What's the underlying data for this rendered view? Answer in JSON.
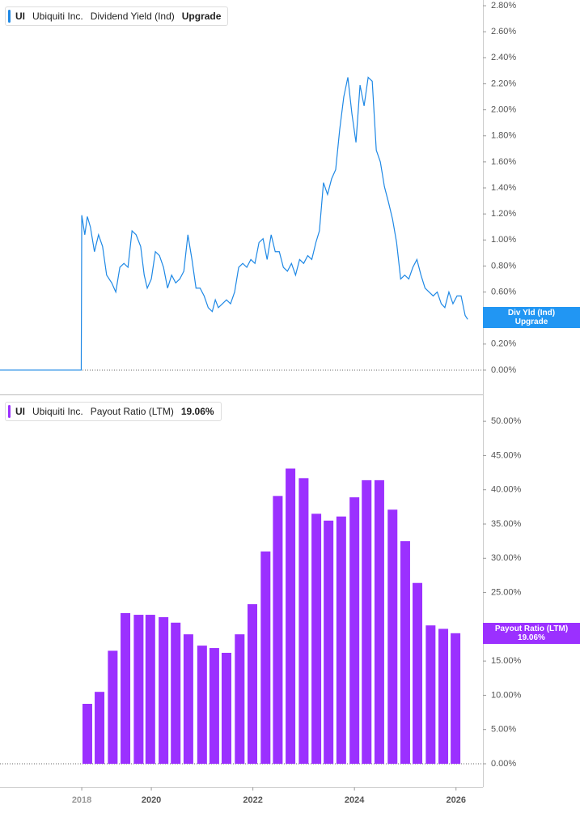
{
  "chart_data": [
    {
      "type": "line",
      "header": {
        "ticker": "UI",
        "company": "Ubiquiti Inc.",
        "metric": "Dividend Yield (Ind)",
        "value": "Upgrade"
      },
      "badge": {
        "label": "Div Yld (Ind)",
        "value": "Upgrade"
      },
      "color": "#1e88e5",
      "xlim": [
        2017.02,
        2026.53
      ],
      "ylim": [
        -0.187,
        2.844
      ],
      "yticks": [
        {
          "value": 0,
          "label": "0.00%"
        },
        {
          "value": 0.2,
          "label": "0.20%"
        },
        {
          "value": 0.4,
          "label": "0.40%"
        },
        {
          "value": 0.6,
          "label": "0.60%"
        },
        {
          "value": 0.8,
          "label": "0.80%"
        },
        {
          "value": 1.0,
          "label": "1.00%"
        },
        {
          "value": 1.2,
          "label": "1.20%"
        },
        {
          "value": 1.4,
          "label": "1.40%"
        },
        {
          "value": 1.6,
          "label": "1.60%"
        },
        {
          "value": 1.8,
          "label": "1.80%"
        },
        {
          "value": 2.0,
          "label": "2.00%"
        },
        {
          "value": 2.2,
          "label": "2.20%"
        },
        {
          "value": 2.4,
          "label": "2.40%"
        },
        {
          "value": 2.6,
          "label": "2.60%"
        },
        {
          "value": 2.8,
          "label": "2.80%"
        }
      ],
      "x": [
        2017.02,
        2018.62,
        2018.63,
        2018.69,
        2018.74,
        2018.8,
        2018.88,
        2018.96,
        2019.04,
        2019.12,
        2019.22,
        2019.3,
        2019.38,
        2019.46,
        2019.54,
        2019.62,
        2019.7,
        2019.79,
        2019.86,
        2019.92,
        2020.0,
        2020.08,
        2020.16,
        2020.24,
        2020.32,
        2020.4,
        2020.48,
        2020.56,
        2020.64,
        2020.72,
        2020.8,
        2020.88,
        2020.96,
        2021.04,
        2021.12,
        2021.2,
        2021.26,
        2021.32,
        2021.4,
        2021.48,
        2021.56,
        2021.64,
        2021.72,
        2021.8,
        2021.88,
        2021.96,
        2022.04,
        2022.12,
        2022.2,
        2022.28,
        2022.36,
        2022.44,
        2022.52,
        2022.6,
        2022.68,
        2022.76,
        2022.84,
        2022.92,
        2023.0,
        2023.08,
        2023.16,
        2023.24,
        2023.31,
        2023.39,
        2023.47,
        2023.55,
        2023.63,
        2023.71,
        2023.79,
        2023.87,
        2023.95,
        2024.03,
        2024.11,
        2024.19,
        2024.27,
        2024.35,
        2024.43,
        2024.51,
        2024.59,
        2024.67,
        2024.75,
        2024.83,
        2024.91,
        2024.99,
        2025.07,
        2025.15,
        2025.23,
        2025.31,
        2025.39,
        2025.47,
        2025.55,
        2025.63,
        2025.71,
        2025.78,
        2025.86,
        2025.94,
        2026.02,
        2026.1,
        2026.18,
        2026.23
      ],
      "values": [
        0,
        0,
        1.19,
        1.04,
        1.18,
        1.1,
        0.91,
        1.04,
        0.95,
        0.73,
        0.67,
        0.6,
        0.79,
        0.82,
        0.79,
        1.07,
        1.04,
        0.95,
        0.73,
        0.63,
        0.7,
        0.91,
        0.88,
        0.79,
        0.63,
        0.73,
        0.67,
        0.7,
        0.76,
        1.04,
        0.85,
        0.63,
        0.63,
        0.57,
        0.48,
        0.45,
        0.54,
        0.48,
        0.51,
        0.54,
        0.51,
        0.6,
        0.79,
        0.82,
        0.79,
        0.85,
        0.82,
        0.98,
        1.01,
        0.85,
        1.04,
        0.91,
        0.91,
        0.79,
        0.76,
        0.82,
        0.73,
        0.85,
        0.82,
        0.88,
        0.85,
        0.98,
        1.07,
        1.44,
        1.35,
        1.47,
        1.54,
        1.85,
        2.1,
        2.25,
        1.97,
        1.75,
        2.19,
        2.03,
        2.25,
        2.22,
        1.69,
        1.6,
        1.41,
        1.29,
        1.16,
        0.98,
        0.7,
        0.73,
        0.7,
        0.79,
        0.85,
        0.73,
        0.63,
        0.6,
        0.57,
        0.6,
        0.51,
        0.48,
        0.6,
        0.51,
        0.57,
        0.57,
        0.42,
        0.39
      ]
    },
    {
      "type": "bar",
      "header": {
        "ticker": "UI",
        "company": "Ubiquiti Inc.",
        "metric": "Payout Ratio (LTM)",
        "value": "19.06%"
      },
      "badge": {
        "label": "Payout Ratio (LTM)",
        "value": "19.06%"
      },
      "color": "#9b30ff",
      "xlim": [
        2017.02,
        2026.53
      ],
      "ylim": [
        -3.43,
        53.8
      ],
      "xticks": [
        {
          "value": 2018.63,
          "label": "2018"
        },
        2020,
        2022,
        2024,
        2026
      ],
      "yticks": [
        {
          "value": 0,
          "label": "0.00%"
        },
        {
          "value": 5,
          "label": "5.00%"
        },
        {
          "value": 10,
          "label": "10.00%"
        },
        {
          "value": 15,
          "label": "15.00%"
        },
        {
          "value": 20,
          "label": "20.00%"
        },
        {
          "value": 25,
          "label": "25.00%"
        },
        {
          "value": 30,
          "label": "30.00%"
        },
        {
          "value": 35,
          "label": "35.00%"
        },
        {
          "value": 40,
          "label": "40.00%"
        },
        {
          "value": 45,
          "label": "45.00%"
        },
        {
          "value": 50,
          "label": "50.00%"
        }
      ],
      "x": [
        2018.74,
        2018.98,
        2019.24,
        2019.49,
        2019.75,
        2019.98,
        2020.24,
        2020.48,
        2020.73,
        2021.0,
        2021.24,
        2021.48,
        2021.74,
        2021.99,
        2022.25,
        2022.49,
        2022.74,
        2023.0,
        2023.25,
        2023.49,
        2023.74,
        2024.0,
        2024.24,
        2024.49,
        2024.75,
        2025.0,
        2025.24,
        2025.5,
        2025.75,
        2025.99
      ],
      "values": [
        8.75,
        10.5,
        16.5,
        22.0,
        21.75,
        21.75,
        21.4,
        20.6,
        18.9,
        17.25,
        16.9,
        16.2,
        18.9,
        23.3,
        31.0,
        39.1,
        43.1,
        41.7,
        36.5,
        35.5,
        36.1,
        38.9,
        41.4,
        41.4,
        37.1,
        32.5,
        26.4,
        20.2,
        19.7,
        19.06
      ]
    }
  ]
}
